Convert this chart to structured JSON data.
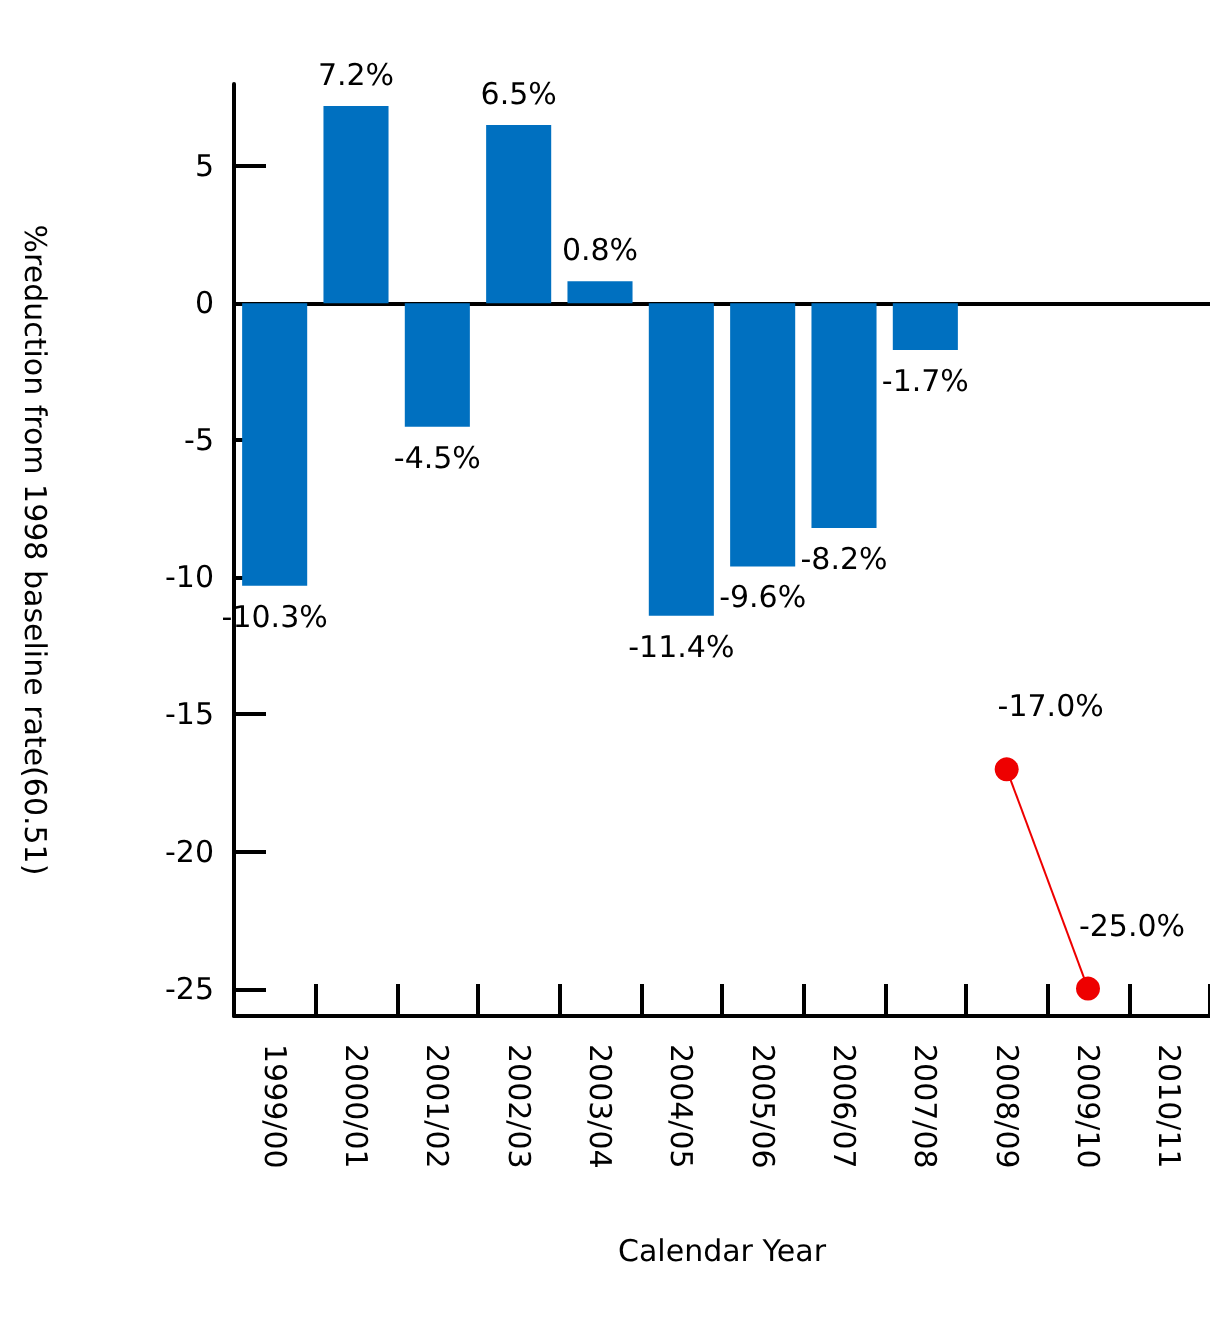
{
  "chart_data": {
    "type": "bar",
    "xlabel": "Calendar Year",
    "ylabel": "%reduction from 1998 baseline rate(60.51)",
    "categories": [
      "1999/00",
      "2000/01",
      "2001/02",
      "2002/03",
      "2003/04",
      "2004/05",
      "2005/06",
      "2006/07",
      "2007/08",
      "2008/09",
      "2009/10",
      "2010/11"
    ],
    "series": [
      {
        "color": "#0070c0",
        "values": [
          -10.3,
          7.2,
          -4.5,
          6.5,
          0.8,
          -11.4,
          -9.6,
          -8.2,
          -1.7,
          null,
          null,
          null
        ],
        "value_labels": [
          "-10.3%",
          "7.2%",
          "-4.5%",
          "6.5%",
          "0.8%",
          "-11.4%",
          "-9.6%",
          "-8.2%",
          "-1.7%",
          null,
          null,
          null
        ]
      },
      {
        "type": "line",
        "color": "#ee0000",
        "marker": "circle",
        "values": [
          null,
          null,
          null,
          null,
          null,
          null,
          null,
          null,
          null,
          -17.0,
          -25.0,
          null
        ],
        "value_labels": [
          null,
          null,
          null,
          null,
          null,
          null,
          null,
          null,
          null,
          "-17.0%",
          "-25.0%",
          null
        ]
      }
    ],
    "ylim": [
      -26,
      8
    ],
    "yticks": [
      -25,
      -20,
      -15,
      -10,
      -5,
      0,
      5
    ]
  }
}
